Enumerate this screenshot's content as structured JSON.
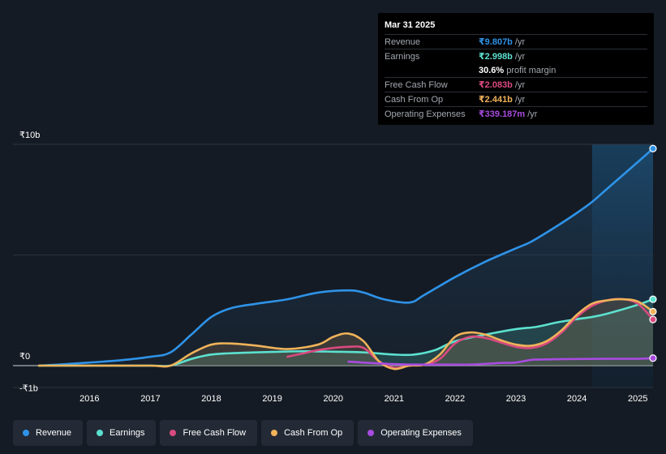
{
  "chart_data": {
    "type": "line",
    "x_range": [
      2015.17,
      2025.25
    ],
    "ylim": [
      -1.0,
      10.0
    ],
    "y_tick_labels": [
      {
        "value": 10,
        "label": "₹10b"
      },
      {
        "value": 0,
        "label": "₹0"
      },
      {
        "value": -1,
        "label": "-₹1b"
      }
    ],
    "x_ticks": [
      2016,
      2017,
      2018,
      2019,
      2020,
      2021,
      2022,
      2023,
      2024,
      2025
    ],
    "highlight_from": 2024.25,
    "series": [
      {
        "name": "Revenue",
        "color": "#2e93e8",
        "fill": true,
        "x": [
          2015.17,
          2015.5,
          2016.0,
          2016.5,
          2017.0,
          2017.33,
          2017.67,
          2018.0,
          2018.33,
          2018.75,
          2019.25,
          2019.75,
          2020.25,
          2020.5,
          2020.83,
          2021.25,
          2021.5,
          2022.0,
          2022.5,
          2023.0,
          2023.25,
          2023.67,
          2024.0,
          2024.25,
          2024.5,
          2025.0,
          2025.25
        ],
        "values": [
          0.0,
          0.05,
          0.14,
          0.24,
          0.4,
          0.6,
          1.4,
          2.2,
          2.6,
          2.8,
          3.0,
          3.3,
          3.4,
          3.3,
          3.0,
          2.85,
          3.2,
          4.0,
          4.7,
          5.3,
          5.6,
          6.3,
          6.9,
          7.4,
          8.0,
          9.2,
          9.807
        ]
      },
      {
        "name": "Earnings",
        "color": "#5ce1cf",
        "fill": true,
        "x": [
          2015.17,
          2016.0,
          2017.0,
          2017.33,
          2017.67,
          2018.0,
          2018.5,
          2019.0,
          2019.5,
          2020.0,
          2020.5,
          2021.0,
          2021.33,
          2021.67,
          2022.0,
          2022.5,
          2023.0,
          2023.33,
          2023.67,
          2024.0,
          2024.25,
          2024.5,
          2025.0,
          2025.25
        ],
        "values": [
          0.0,
          0.0,
          0.0,
          0.0,
          0.3,
          0.5,
          0.58,
          0.62,
          0.65,
          0.63,
          0.6,
          0.5,
          0.5,
          0.7,
          1.1,
          1.4,
          1.65,
          1.75,
          1.95,
          2.1,
          2.2,
          2.35,
          2.75,
          2.998
        ]
      },
      {
        "name": "Free Cash Flow",
        "color": "#d94a80",
        "fill": false,
        "x": [
          2019.25,
          2019.5,
          2019.75,
          2020.0,
          2020.25,
          2020.5,
          2020.75,
          2021.0,
          2021.25,
          2021.5,
          2021.75,
          2022.0,
          2022.25,
          2022.5,
          2022.75,
          2023.0,
          2023.25,
          2023.5,
          2023.75,
          2024.0,
          2024.25,
          2024.5,
          2024.75,
          2025.0,
          2025.25
        ],
        "values": [
          0.4,
          0.55,
          0.7,
          0.8,
          0.85,
          0.8,
          0.2,
          -0.1,
          0.0,
          0.05,
          0.3,
          1.0,
          1.3,
          1.25,
          1.05,
          0.85,
          0.8,
          1.0,
          1.5,
          2.2,
          2.7,
          2.95,
          3.0,
          2.8,
          2.083
        ]
      },
      {
        "name": "Cash From Op",
        "color": "#f0b35a",
        "fill": true,
        "x": [
          2015.17,
          2016.0,
          2017.0,
          2017.33,
          2017.67,
          2018.0,
          2018.33,
          2018.75,
          2019.25,
          2019.75,
          2020.0,
          2020.25,
          2020.5,
          2020.75,
          2021.0,
          2021.25,
          2021.5,
          2021.75,
          2022.0,
          2022.25,
          2022.5,
          2022.75,
          2023.0,
          2023.25,
          2023.5,
          2023.75,
          2024.0,
          2024.25,
          2024.5,
          2024.75,
          2025.0,
          2025.25
        ],
        "values": [
          0.0,
          0.0,
          0.0,
          0.0,
          0.55,
          0.95,
          1.0,
          0.9,
          0.75,
          0.95,
          1.3,
          1.45,
          1.1,
          0.2,
          -0.15,
          0.0,
          0.05,
          0.5,
          1.3,
          1.5,
          1.4,
          1.15,
          0.95,
          0.9,
          1.1,
          1.6,
          2.3,
          2.8,
          2.95,
          3.0,
          2.9,
          2.441
        ]
      },
      {
        "name": "Operating Expenses",
        "color": "#a84be0",
        "fill": false,
        "x": [
          2020.25,
          2020.75,
          2021.25,
          2021.75,
          2022.25,
          2022.75,
          2023.0,
          2023.25,
          2023.5,
          2024.0,
          2024.5,
          2025.0,
          2025.25
        ],
        "values": [
          0.18,
          0.1,
          0.05,
          0.05,
          0.05,
          0.12,
          0.14,
          0.26,
          0.28,
          0.3,
          0.31,
          0.31,
          0.339
        ]
      }
    ]
  },
  "tooltip": {
    "date": "Mar 31 2025",
    "rows": [
      {
        "label": "Revenue",
        "value": "₹9.807b",
        "unit": "/yr",
        "color": "#2e93e8"
      },
      {
        "label": "Earnings",
        "value": "₹2.998b",
        "unit": "/yr",
        "color": "#5ce1cf"
      },
      {
        "label": "",
        "value": "30.6%",
        "unit": "profit margin",
        "color": "#ffffff"
      },
      {
        "label": "Free Cash Flow",
        "value": "₹2.083b",
        "unit": "/yr",
        "color": "#d94a80"
      },
      {
        "label": "Cash From Op",
        "value": "₹2.441b",
        "unit": "/yr",
        "color": "#f0b35a"
      },
      {
        "label": "Operating Expenses",
        "value": "₹339.187m",
        "unit": "/yr",
        "color": "#a84be0"
      }
    ]
  },
  "legend": [
    {
      "label": "Revenue",
      "color": "#2e93e8"
    },
    {
      "label": "Earnings",
      "color": "#5ce1cf"
    },
    {
      "label": "Free Cash Flow",
      "color": "#d94a80"
    },
    {
      "label": "Cash From Op",
      "color": "#f0b35a"
    },
    {
      "label": "Operating Expenses",
      "color": "#a84be0"
    }
  ]
}
